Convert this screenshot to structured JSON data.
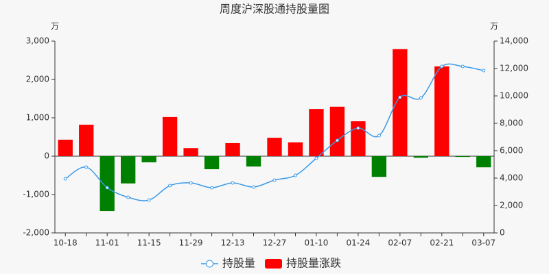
{
  "chart_data": {
    "type": "combo",
    "title": "周度沪深股通持股量图",
    "y_unit": "万",
    "y2_unit": "万",
    "categories": [
      "10-18",
      null,
      "11-01",
      null,
      "11-15",
      null,
      "11-29",
      null,
      "12-13",
      null,
      "12-27",
      null,
      "01-10",
      null,
      "01-24",
      null,
      "02-07",
      null,
      "02-21",
      null,
      "03-07"
    ],
    "series": [
      {
        "name": "持股量",
        "type": "line",
        "axis": "y2",
        "color": "#3a9ae8",
        "values": [
          3950,
          4800,
          3300,
          2600,
          2400,
          3450,
          3650,
          3300,
          3650,
          3350,
          3850,
          4200,
          5450,
          6750,
          7650,
          7100,
          9900,
          9850,
          12150,
          12150,
          11850
        ]
      },
      {
        "name": "持股量涨跌",
        "type": "bar",
        "color": "#ff0000",
        "negative_color": "#008000",
        "values": [
          430,
          820,
          -1430,
          -710,
          -160,
          1020,
          210,
          -340,
          340,
          -270,
          480,
          360,
          1230,
          1290,
          910,
          -540,
          2790,
          -40,
          2340,
          -20,
          -290
        ]
      }
    ],
    "ylim": [
      -2000,
      3000
    ],
    "yticks": [
      {
        "value": -2000,
        "label": "-2,000"
      },
      {
        "value": -1000,
        "label": "-1,000"
      },
      0,
      {
        "value": 1000,
        "label": "1,000"
      },
      {
        "value": 2000,
        "label": "2,000"
      },
      {
        "value": 3000,
        "label": "3,000"
      }
    ],
    "y2lim": [
      0,
      14000
    ],
    "y2ticks": [
      0,
      {
        "value": 2000,
        "label": "2,000"
      },
      {
        "value": 4000,
        "label": "4,000"
      },
      {
        "value": 6000,
        "label": "6,000"
      },
      {
        "value": 8000,
        "label": "8,000"
      },
      {
        "value": 10000,
        "label": "10,000"
      },
      {
        "value": 12000,
        "label": "12,000"
      },
      {
        "value": 14000,
        "label": "14,000"
      }
    ]
  }
}
